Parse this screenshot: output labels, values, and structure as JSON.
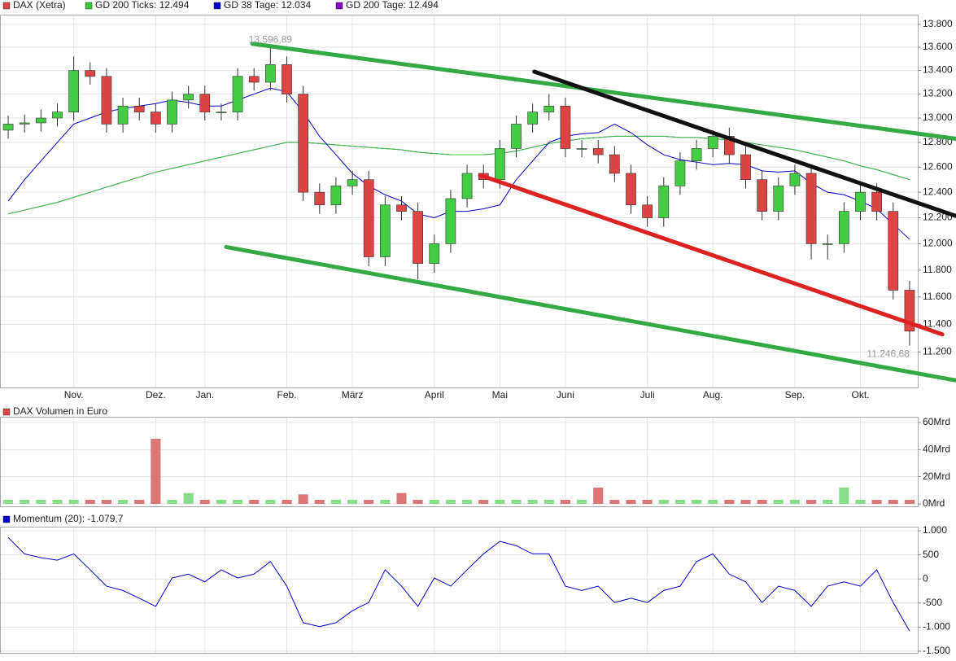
{
  "chart_data": [
    {
      "type": "candlestick",
      "legend": [
        {
          "name": "DAX (Xetra)",
          "color": "#dd4444"
        },
        {
          "name": "GD 200 Ticks: 12.494",
          "color": "#33cc33"
        },
        {
          "name": "GD 38 Tage: 12.034",
          "color": "#0000cc"
        },
        {
          "name": "GD 200 Tage: 12.494",
          "color": "#8800cc"
        }
      ],
      "up_color": "#44cc44",
      "down_color": "#dd4444",
      "log_scale": true,
      "grid": true,
      "categories": [
        null,
        null,
        null,
        null,
        "Nov.",
        null,
        null,
        null,
        null,
        "Dez.",
        null,
        null,
        "Jan.",
        null,
        null,
        null,
        null,
        "Feb.",
        null,
        null,
        null,
        "März",
        null,
        null,
        null,
        null,
        "April",
        null,
        null,
        null,
        "Mai",
        null,
        null,
        null,
        "Juni",
        null,
        null,
        null,
        null,
        "Juli",
        null,
        null,
        null,
        "Aug.",
        null,
        null,
        null,
        null,
        "Sep.",
        null,
        null,
        null,
        "Okt.",
        null,
        null,
        null
      ],
      "open": [
        12900,
        12950,
        12960,
        13000,
        13050,
        13400,
        13350,
        12950,
        13100,
        13050,
        12950,
        13150,
        13200,
        13050,
        13050,
        13350,
        13300,
        13450,
        13200,
        12400,
        12300,
        12450,
        12500,
        11900,
        12300,
        12250,
        11850,
        12000,
        12350,
        12550,
        12500,
        12750,
        12950,
        13050,
        13100,
        12750,
        12750,
        12700,
        12550,
        12300,
        12200,
        12450,
        12650,
        12750,
        12850,
        12700,
        12500,
        12250,
        12450,
        12550,
        12000,
        12000,
        12250,
        12400,
        12250,
        11650
      ],
      "high": [
        13020,
        13030,
        13070,
        13120,
        13520,
        13470,
        13420,
        13170,
        13170,
        13120,
        13220,
        13270,
        13270,
        13120,
        13420,
        13420,
        13596.89,
        13520,
        13270,
        12470,
        12520,
        12570,
        12570,
        12370,
        12370,
        12320,
        12070,
        12420,
        12620,
        12620,
        12820,
        13020,
        13120,
        13200,
        13170,
        12820,
        12820,
        12770,
        12620,
        12370,
        12520,
        12720,
        12820,
        12900,
        12920,
        12770,
        12570,
        12520,
        12620,
        12620,
        12070,
        12320,
        12470,
        12470,
        12320,
        11720
      ],
      "low": [
        12830,
        12880,
        12890,
        12930,
        12980,
        13280,
        12880,
        12880,
        12980,
        12880,
        12880,
        13080,
        12980,
        12980,
        12980,
        13230,
        13230,
        13130,
        12330,
        12230,
        12230,
        12380,
        11830,
        11830,
        12180,
        11730,
        11780,
        11930,
        12280,
        12430,
        12430,
        12680,
        12880,
        12980,
        12680,
        12680,
        12630,
        12480,
        12230,
        12130,
        12130,
        12380,
        12580,
        12680,
        12630,
        12430,
        12180,
        12180,
        12380,
        11880,
        11880,
        11930,
        12180,
        12180,
        11580,
        11246.68
      ],
      "close": [
        12950,
        12960,
        13000,
        13050,
        13400,
        13350,
        12950,
        13100,
        13050,
        12950,
        13150,
        13200,
        13050,
        13050,
        13350,
        13300,
        13450,
        13200,
        12400,
        12300,
        12450,
        12500,
        11900,
        12300,
        12250,
        11850,
        12000,
        12350,
        12550,
        12500,
        12750,
        12950,
        13050,
        13100,
        12750,
        12750,
        12700,
        12550,
        12300,
        12200,
        12450,
        12650,
        12750,
        12850,
        12700,
        12500,
        12250,
        12450,
        12550,
        12000,
        12000,
        12250,
        12400,
        12250,
        11650,
        11350
      ],
      "series": [
        {
          "name": "GD 200 Tage: 12.494",
          "color": "#8800cc",
          "values": [
            12230,
            12260,
            12290,
            12320,
            12360,
            12400,
            12440,
            12480,
            12520,
            12560,
            12590,
            12620,
            12650,
            12680,
            12710,
            12740,
            12770,
            12800,
            12800,
            12790,
            12780,
            12770,
            12760,
            12750,
            12740,
            12720,
            12710,
            12700,
            12700,
            12700,
            12710,
            12730,
            12760,
            12790,
            12810,
            12830,
            12840,
            12850,
            12850,
            12850,
            12850,
            12840,
            12840,
            12830,
            12820,
            12800,
            12780,
            12760,
            12740,
            12710,
            12680,
            12650,
            12610,
            12580,
            12540,
            12500
          ]
        },
        {
          "name": "GD 200 Ticks: 12.494",
          "color": "#33cc33",
          "values": [
            12230,
            12260,
            12290,
            12320,
            12360,
            12400,
            12440,
            12480,
            12520,
            12560,
            12590,
            12620,
            12650,
            12680,
            12710,
            12740,
            12770,
            12800,
            12800,
            12790,
            12780,
            12770,
            12760,
            12750,
            12740,
            12720,
            12710,
            12700,
            12700,
            12700,
            12710,
            12730,
            12760,
            12790,
            12810,
            12830,
            12840,
            12850,
            12850,
            12850,
            12850,
            12840,
            12840,
            12830,
            12820,
            12800,
            12780,
            12760,
            12740,
            12710,
            12680,
            12650,
            12610,
            12580,
            12540,
            12500
          ]
        },
        {
          "name": "GD 38 Tage: 12.034",
          "color": "#0000cc",
          "values": [
            12330,
            12500,
            12650,
            12800,
            12950,
            13000,
            13050,
            13080,
            13100,
            13120,
            13150,
            13130,
            13100,
            13100,
            13150,
            13200,
            13250,
            13220,
            13050,
            12850,
            12700,
            12550,
            12450,
            12380,
            12330,
            12230,
            12200,
            12250,
            12250,
            12270,
            12300,
            12500,
            12650,
            12800,
            12850,
            12870,
            12880,
            12950,
            12880,
            12780,
            12700,
            12660,
            12640,
            12620,
            12630,
            12620,
            12570,
            12560,
            12570,
            12470,
            12400,
            12380,
            12330,
            12270,
            12150,
            12034
          ]
        }
      ],
      "trend_lines": [
        {
          "color": "#33aa44",
          "x": [
            14.9,
            57.8
          ],
          "values": [
            13630,
            12830
          ]
        },
        {
          "color": "#33aa44",
          "x": [
            13.3,
            57.8
          ],
          "values": [
            11975,
            11000
          ]
        },
        {
          "color": "#111111",
          "x": [
            32.1,
            57.8
          ],
          "values": [
            13390,
            12215
          ]
        },
        {
          "color": "#dd2222",
          "x": [
            28.8,
            57.0
          ],
          "values": [
            12535,
            11327
          ]
        }
      ],
      "annotations": [
        "13.596,89",
        "11.246,68"
      ],
      "ylim": [
        10950,
        13885
      ],
      "yticks": [
        {
          "value": 11200,
          "label": "11.200"
        },
        {
          "value": 11400,
          "label": "11.400"
        },
        {
          "value": 11600,
          "label": "11.600"
        },
        {
          "value": 11800,
          "label": "11.800"
        },
        {
          "value": 12000,
          "label": "12.000"
        },
        {
          "value": 12200,
          "label": "12.200"
        },
        {
          "value": 12400,
          "label": "12.400"
        },
        {
          "value": 12600,
          "label": "12.600"
        },
        {
          "value": 12800,
          "label": "12.800"
        },
        {
          "value": 13000,
          "label": "13.000"
        },
        {
          "value": 13200,
          "label": "13.200"
        },
        {
          "value": 13400,
          "label": "13.400"
        },
        {
          "value": 13600,
          "label": "13.600"
        },
        {
          "value": 13800,
          "label": "13.800"
        }
      ]
    },
    {
      "type": "bar",
      "title": "DAX Volumen in Euro",
      "color": "#dd4444",
      "grid": true,
      "values": [
        3,
        3,
        3,
        3,
        3,
        3,
        3,
        3,
        3,
        48,
        3,
        8,
        3,
        3,
        3,
        3,
        3,
        3,
        7,
        3,
        3,
        3,
        3,
        3,
        8,
        3,
        3,
        3,
        3,
        3,
        3,
        3,
        3,
        3,
        3,
        3,
        12,
        3,
        3,
        3,
        3,
        3,
        3,
        3,
        3,
        3,
        3,
        3,
        3,
        3,
        3,
        12,
        3,
        3,
        3,
        3
      ],
      "ylim": [
        -1.8,
        64.2
      ],
      "yticks": [
        {
          "value": 0,
          "label": "0Mrd"
        },
        {
          "value": 20,
          "label": "20Mrd"
        },
        {
          "value": 40,
          "label": "40Mrd"
        },
        {
          "value": 60,
          "label": "60Mrd"
        }
      ]
    },
    {
      "type": "line",
      "grid": true,
      "series": [
        {
          "name": "Momentum (20): -1.079,7",
          "color": "#0000cc",
          "values": [
            860,
            520,
            440,
            390,
            520,
            190,
            -150,
            -240,
            -400,
            -570,
            20,
            100,
            -60,
            190,
            20,
            100,
            360,
            -150,
            -910,
            -990,
            -910,
            -660,
            -490,
            190,
            -150,
            -570,
            20,
            -150,
            190,
            520,
            780,
            690,
            520,
            520,
            -150,
            -240,
            -150,
            -490,
            -400,
            -490,
            -240,
            -150,
            360,
            520,
            100,
            -60,
            -490,
            -150,
            -240,
            -570,
            -150,
            -60,
            -150,
            190,
            -490,
            -1079.7
          ]
        }
      ],
      "ylim": [
        -1535,
        1085
      ],
      "yticks": [
        {
          "value": 1000,
          "label": "1.000"
        },
        500,
        0,
        -500,
        {
          "value": -1000,
          "label": "-1.000"
        },
        {
          "value": -1500,
          "label": "-1.500"
        }
      ]
    }
  ]
}
